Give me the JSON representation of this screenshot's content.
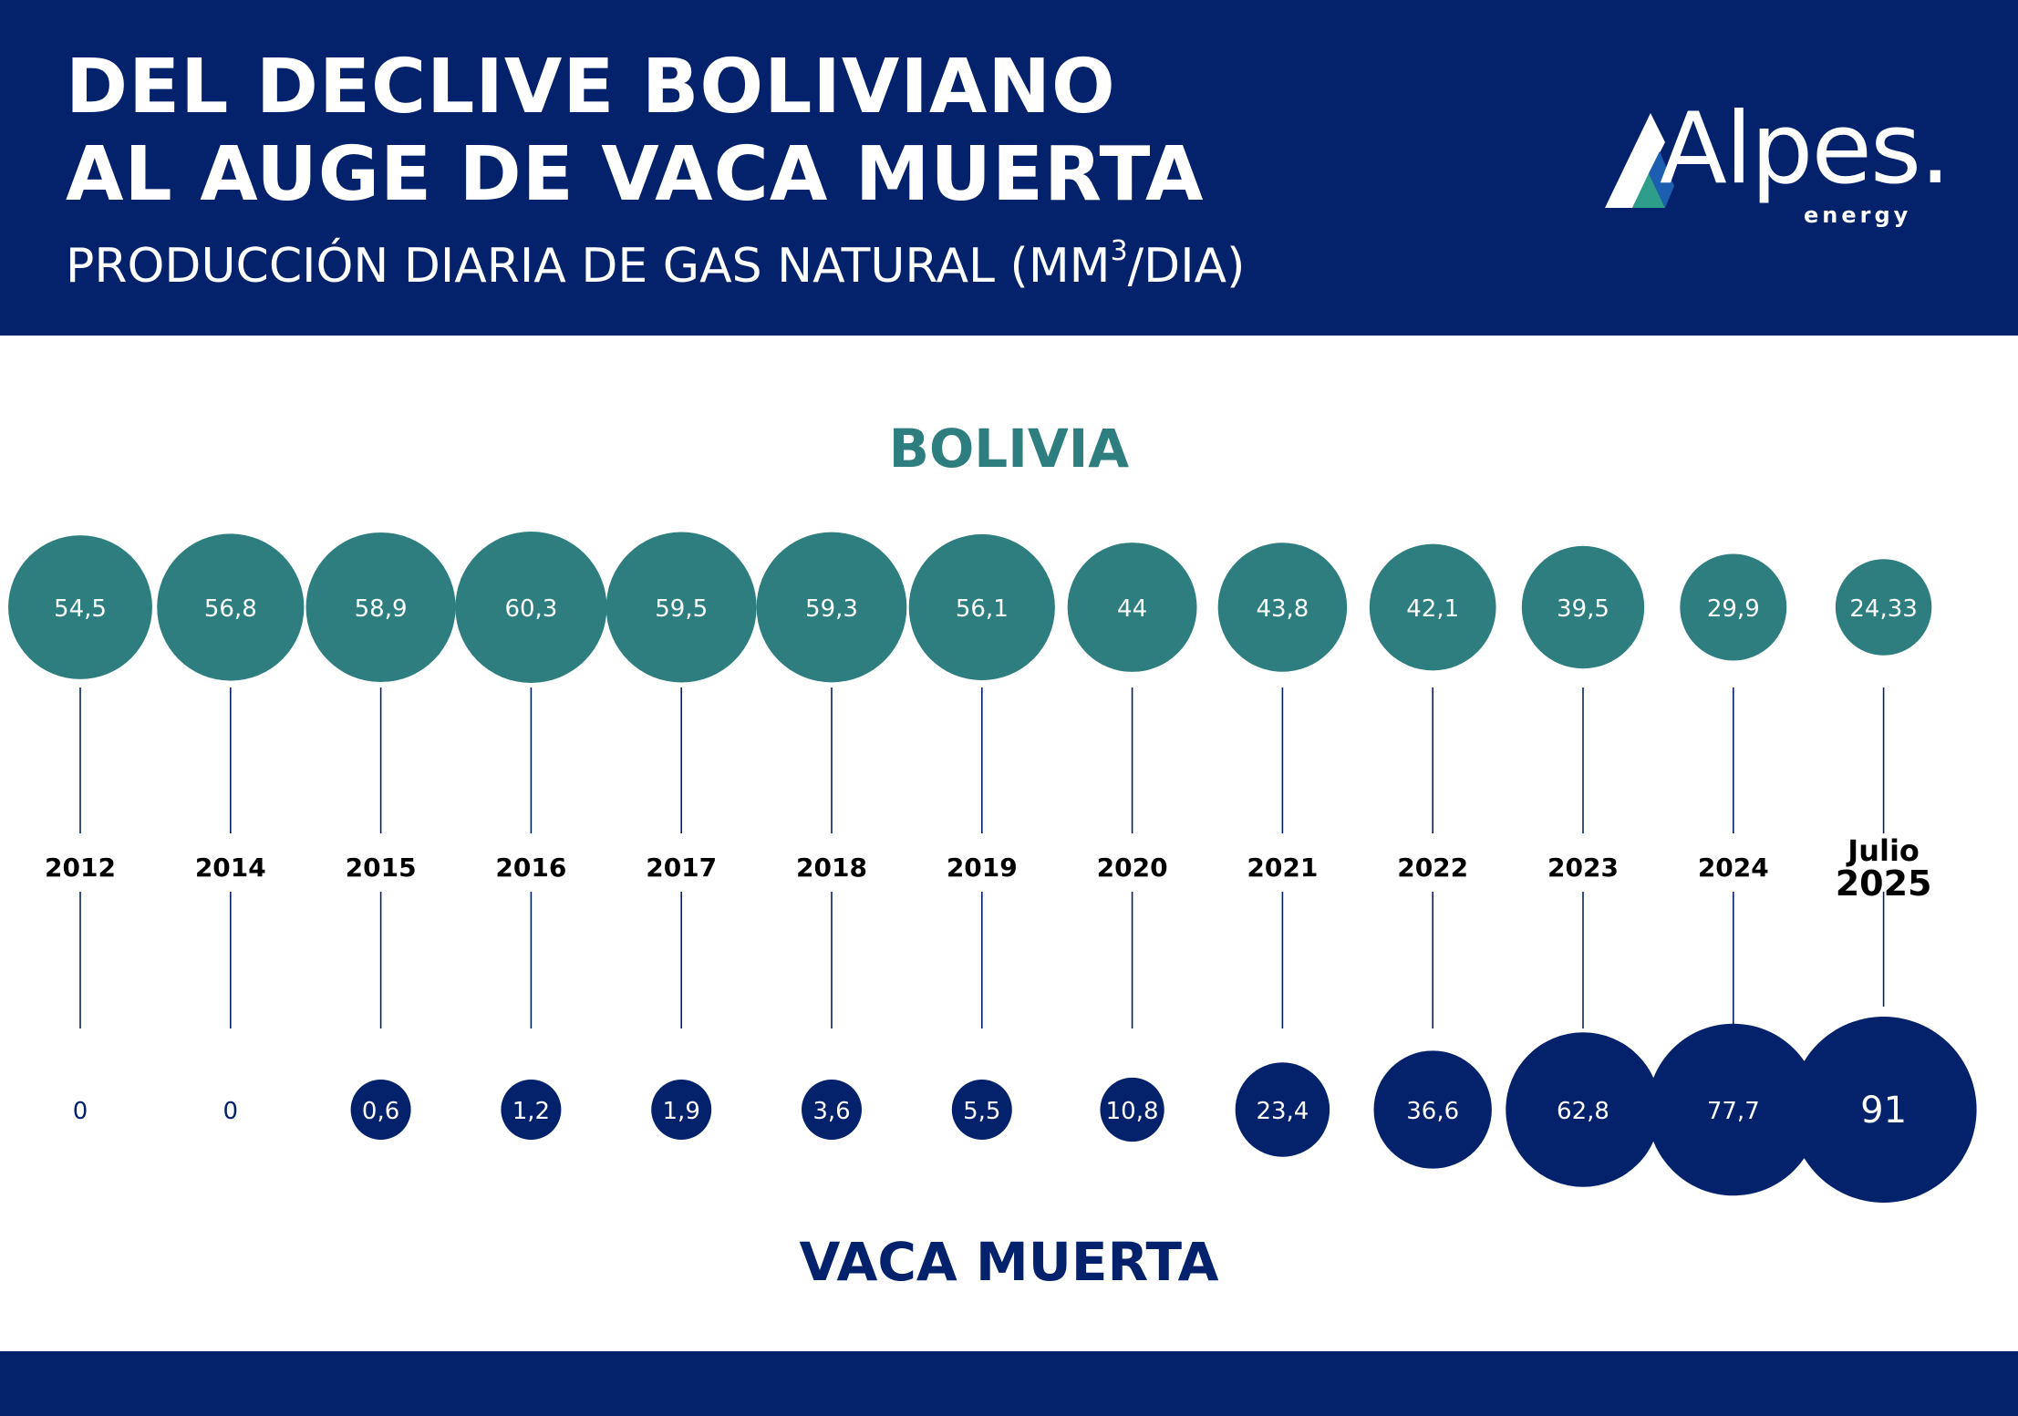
{
  "header": {
    "title_line1": "DEL DECLIVE BOLIVIANO",
    "title_line2": "AL AUGE DE VACA MUERTA",
    "subtitle_main": "PRODUCCIÓN DIARIA DE GAS NATURAL (MM",
    "subtitle_sup": "3",
    "subtitle_end": "/DIA)"
  },
  "logo": {
    "name": "Alpes.",
    "tagline": "energy"
  },
  "colors": {
    "navy": "#04216b",
    "teal": "#2e7e80",
    "white": "#ffffff"
  },
  "chart_data": {
    "type": "bubble-timeline",
    "categories": [
      "2012",
      "2014",
      "2015",
      "2016",
      "2017",
      "2018",
      "2019",
      "2020",
      "2021",
      "2022",
      "2023",
      "2024",
      "Julio 2025"
    ],
    "series": [
      {
        "name": "BOLIVIA",
        "values": [
          54.5,
          56.8,
          58.9,
          60.3,
          59.5,
          59.3,
          56.1,
          44,
          43.8,
          42.1,
          39.5,
          29.9,
          24.33
        ],
        "labels": [
          "54,5",
          "56,8",
          "58,9",
          "60,3",
          "59,5",
          "59,3",
          "56,1",
          "44",
          "43,8",
          "42,1",
          "39,5",
          "29,9",
          "24,33"
        ]
      },
      {
        "name": "VACA MUERTA",
        "values": [
          0,
          0,
          0.6,
          1.2,
          1.9,
          3.6,
          5.5,
          10.8,
          23.4,
          36.6,
          62.8,
          77.7,
          91
        ],
        "labels": [
          "0",
          "0",
          "0,6",
          "1,2",
          "1,9",
          "3,6",
          "5,5",
          "10,8",
          "23,4",
          "36,6",
          "62,8",
          "77,7",
          "91"
        ]
      }
    ]
  }
}
